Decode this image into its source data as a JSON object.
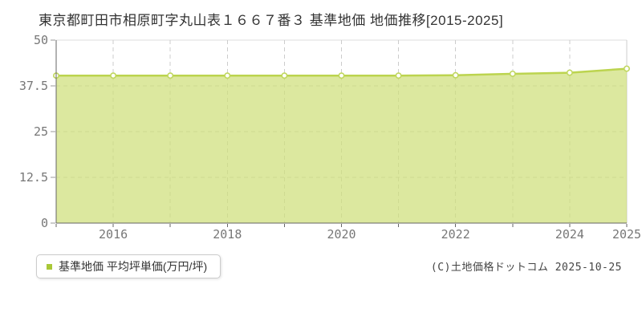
{
  "page": {
    "title": "東京都町田市相原町字丸山表１６６７番３ 基準地価 地価推移[2015-2025]",
    "copyright": "(C)土地価格ドットコム 2025-10-25"
  },
  "legend": {
    "label": "基準地価 平均坪単価(万円/坪)",
    "marker_color": "#a9c837"
  },
  "chart_data": {
    "type": "area",
    "title": "東京都町田市相原町字丸山表１６６７番３ 基準地価 地価推移[2015-2025]",
    "x": [
      2015,
      2016,
      2017,
      2018,
      2019,
      2020,
      2021,
      2022,
      2023,
      2024,
      2025
    ],
    "series": [
      {
        "name": "基準地価 平均坪単価(万円/坪)",
        "values": [
          40.3,
          40.3,
          40.3,
          40.3,
          40.3,
          40.3,
          40.3,
          40.4,
          40.8,
          41.1,
          42.2
        ]
      }
    ],
    "xlabel": "",
    "ylabel": "万円/坪",
    "ylim": [
      0,
      50
    ],
    "yticks": [
      0,
      12.5,
      25,
      37.5,
      50
    ],
    "ytick_labels": [
      "0",
      "12.5",
      "25",
      "37.5",
      "50"
    ],
    "xticks_shown": [
      2016,
      2018,
      2020,
      2022,
      2024,
      2025
    ],
    "grid": true,
    "legend_position": "bottom-left",
    "colors": {
      "line": "#bcd44f",
      "fill": "#cedf7a",
      "fill_opacity": 0.72,
      "marker_fill": "#ffffff",
      "marker_stroke": "#c0d75e",
      "grid": "#cccccc",
      "border": "#dddddd",
      "axis": "#666666",
      "tick_text": "#777777"
    }
  }
}
